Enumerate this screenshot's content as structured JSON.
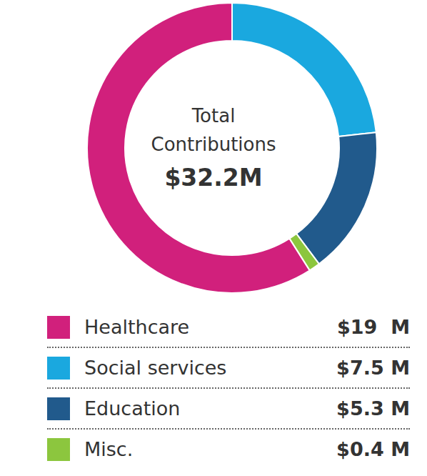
{
  "chart_data": {
    "type": "pie",
    "title": "Total Contributions",
    "total": 32.2,
    "total_label": "$32.2M",
    "categories": [
      "Healthcare",
      "Social services",
      "Education",
      "Misc."
    ],
    "values": [
      19,
      7.5,
      5.3,
      0.4
    ],
    "value_labels": [
      "$19  M",
      "$7.5 M",
      "$5.3 M",
      "$0.4 M"
    ],
    "colors": [
      "#d1207c",
      "#1aa8df",
      "#215a8c",
      "#8cc63e"
    ]
  }
}
